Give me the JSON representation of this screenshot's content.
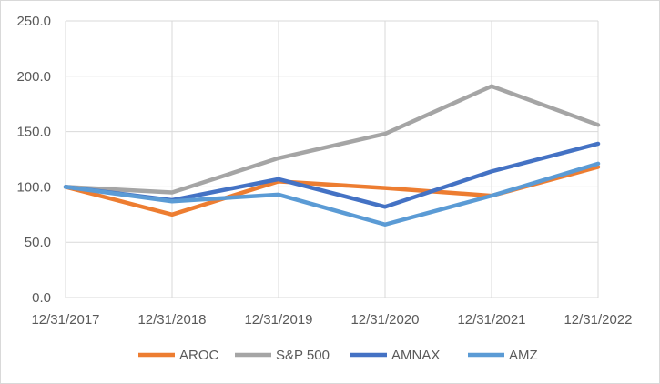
{
  "chart_data": {
    "type": "line",
    "title": "",
    "xlabel": "",
    "ylabel": "",
    "x": [
      "12/31/2017",
      "12/31/2018",
      "12/31/2019",
      "12/31/2020",
      "12/31/2021",
      "12/31/2022"
    ],
    "ylim": [
      0,
      250
    ],
    "yticks": [
      "0.0",
      "50.0",
      "100.0",
      "150.0",
      "200.0",
      "250.0"
    ],
    "grid": true,
    "legend": "bottom",
    "series": [
      {
        "name": "AROC",
        "color": "#ED7D31",
        "values": [
          100,
          75,
          105,
          99,
          92,
          118
        ]
      },
      {
        "name": "S&P 500",
        "color": "#A5A5A5",
        "values": [
          100,
          95,
          126,
          148,
          191,
          156
        ]
      },
      {
        "name": "AMNAX",
        "color": "#4472C4",
        "values": [
          100,
          88,
          107,
          82,
          114,
          139
        ]
      },
      {
        "name": "AMZ",
        "color": "#5B9BD5",
        "values": [
          100,
          87,
          93,
          66,
          92,
          121
        ]
      }
    ]
  }
}
